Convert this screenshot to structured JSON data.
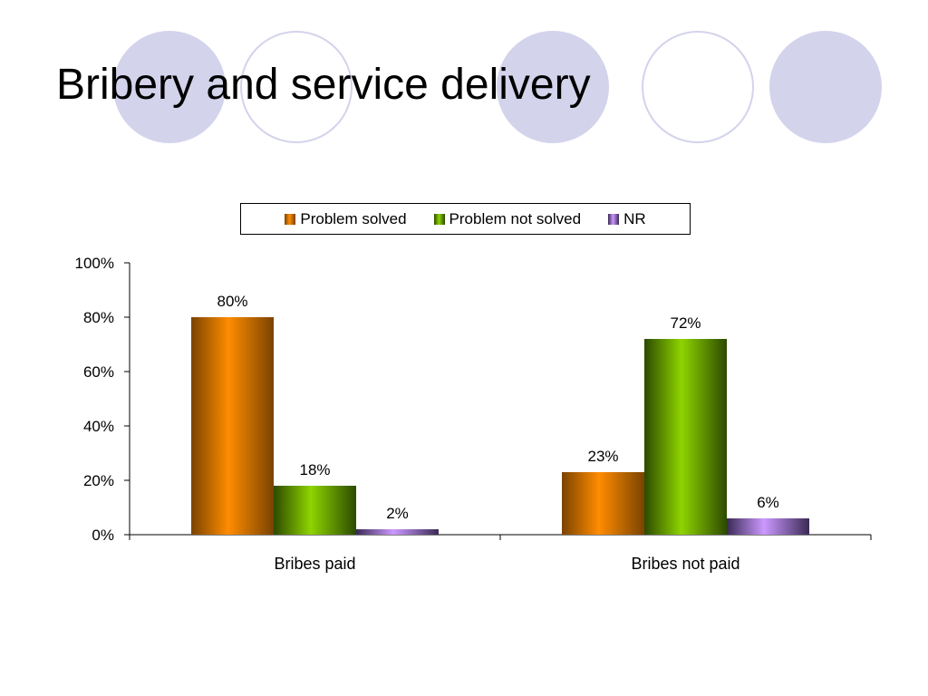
{
  "slide": {
    "title": "Bribery and service delivery"
  },
  "colors": {
    "circle_fill": "#d3d3ec",
    "circle_stroke": "#d3d3ec",
    "axis": "#000000"
  },
  "chart_data": {
    "type": "bar",
    "categories": [
      "Bribes paid",
      "Bribes not paid"
    ],
    "series": [
      {
        "name": "Problem solved",
        "values": [
          80,
          23
        ],
        "color": "#ff8c00",
        "shade": "#7a4300"
      },
      {
        "name": "Problem not solved",
        "values": [
          18,
          72
        ],
        "color": "#8fd400",
        "shade": "#2c4a00"
      },
      {
        "name": "NR",
        "values": [
          2,
          6
        ],
        "color": "#cc99ff",
        "shade": "#3a2a55"
      }
    ],
    "data_labels": [
      [
        "80%",
        "23%"
      ],
      [
        "18%",
        "72%"
      ],
      [
        "2%",
        "6%"
      ]
    ],
    "ylim": [
      0,
      100
    ],
    "yticks": [
      "0%",
      "20%",
      "40%",
      "60%",
      "80%",
      "100%"
    ],
    "legend_position": "top",
    "grid": false,
    "xlabel": "",
    "ylabel": ""
  }
}
